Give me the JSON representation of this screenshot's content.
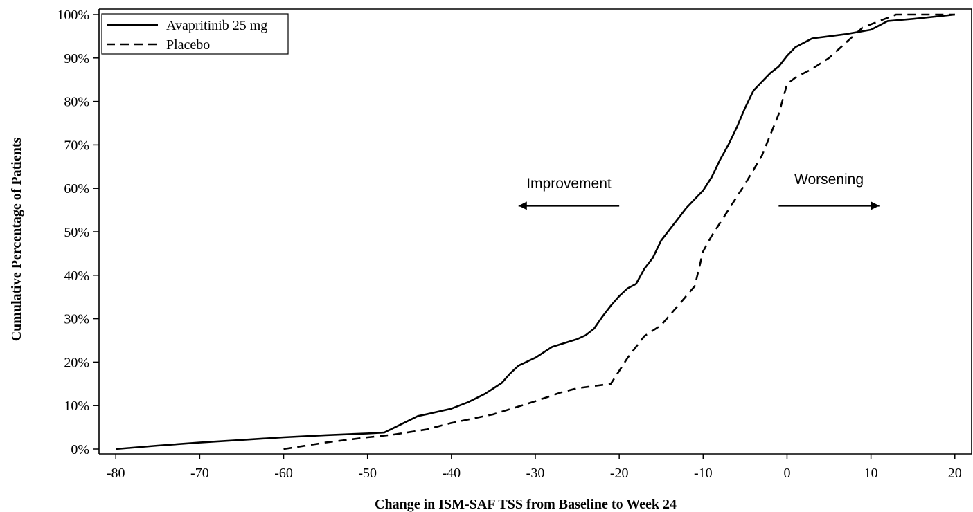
{
  "chart_data": {
    "type": "line",
    "title": "",
    "xlabel": "Change in ISM-SAF TSS from Baseline to Week 24",
    "ylabel": "Cumulative Percentage of Patients",
    "xlim": [
      -82,
      22
    ],
    "ylim": [
      0,
      100
    ],
    "x_ticks": [
      -80,
      -70,
      -60,
      -50,
      -40,
      -30,
      -20,
      -10,
      0,
      10,
      20
    ],
    "x_tick_labels": [
      "-80",
      "-70",
      "-60",
      "-50",
      "-40",
      "-30",
      "-20",
      "-10",
      "0",
      "10",
      "20"
    ],
    "y_ticks": [
      0,
      10,
      20,
      30,
      40,
      50,
      60,
      70,
      80,
      90,
      100
    ],
    "y_tick_labels": [
      "0%",
      "10%",
      "20%",
      "30%",
      "40%",
      "50%",
      "60%",
      "70%",
      "80%",
      "90%",
      "100%"
    ],
    "grid": false,
    "legend_position": "top-left",
    "series": [
      {
        "name": "Avapritinib 25 mg",
        "style": "solid",
        "color": "#000000",
        "x": [
          -80,
          -75,
          -70,
          -65,
          -60,
          -55,
          -50,
          -48,
          -46,
          -44,
          -43,
          -40,
          -38,
          -36,
          -34,
          -33,
          -32,
          -30,
          -28,
          -25,
          -24,
          -23,
          -22,
          -21,
          -20,
          -19,
          -18,
          -17,
          -16,
          -15,
          -14,
          -13,
          -12,
          -11,
          -10,
          -9,
          -8,
          -7,
          -6,
          -5,
          -4,
          -3,
          -2,
          -1,
          0,
          1,
          2,
          3,
          5,
          7,
          10,
          12,
          15,
          20
        ],
        "y": [
          0,
          0.8,
          1.5,
          2.1,
          2.7,
          3.2,
          3.6,
          3.8,
          5.7,
          7.6,
          8.0,
          9.3,
          10.8,
          12.7,
          15.2,
          17.4,
          19.2,
          21.0,
          23.5,
          25.3,
          26.2,
          27.7,
          30.5,
          33.0,
          35.2,
          37.0,
          38.0,
          41.5,
          44.0,
          48.0,
          50.5,
          53.0,
          55.5,
          57.5,
          59.5,
          62.5,
          66.5,
          70.0,
          74.0,
          78.5,
          82.5,
          84.5,
          86.5,
          88.0,
          90.5,
          92.5,
          93.5,
          94.5,
          95.0,
          95.5,
          96.5,
          98.5,
          99.0,
          100
        ]
      },
      {
        "name": "Placebo",
        "style": "dashed",
        "color": "#000000",
        "x": [
          -60,
          -55,
          -50,
          -47,
          -43,
          -40,
          -35,
          -30,
          -27,
          -25,
          -23,
          -21,
          -19,
          -17,
          -15,
          -13,
          -11,
          -10,
          -9,
          -7,
          -5,
          -3,
          -1,
          0,
          1,
          3,
          5,
          7,
          9,
          11,
          13,
          20
        ],
        "y": [
          0,
          1.5,
          2.7,
          3.3,
          4.5,
          6.0,
          8.0,
          11.0,
          13.0,
          14.0,
          14.5,
          15.0,
          21.0,
          26.0,
          28.5,
          33.0,
          37.5,
          45.5,
          49.0,
          55.0,
          61.0,
          67.5,
          77.0,
          84.0,
          85.5,
          87.5,
          90.0,
          93.5,
          97.0,
          98.5,
          100,
          100
        ]
      }
    ],
    "annotations": [
      {
        "text": "Improvement",
        "direction": "left",
        "x_from": -20,
        "x_to": -32,
        "y": 56,
        "label_x": -26,
        "label_y": 60
      },
      {
        "text": "Worsening",
        "direction": "right",
        "x_from": -1,
        "x_to": 11,
        "y": 56,
        "label_x": 5,
        "label_y": 61
      }
    ]
  }
}
